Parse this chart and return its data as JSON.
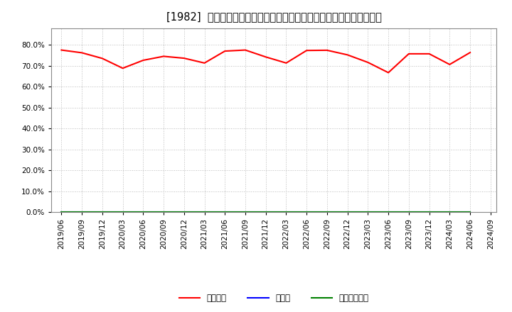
{
  "title": "[1982]  自己資本、のれん、繰延税金資産の総資産に対する比率の推移",
  "ylim": [
    0.0,
    0.88
  ],
  "yticks": [
    0.0,
    0.1,
    0.2,
    0.3,
    0.4,
    0.5,
    0.6,
    0.7,
    0.8
  ],
  "dates": [
    "2019/06",
    "2019/09",
    "2019/12",
    "2020/03",
    "2020/06",
    "2020/09",
    "2020/12",
    "2021/03",
    "2021/06",
    "2021/09",
    "2021/12",
    "2022/03",
    "2022/06",
    "2022/09",
    "2022/12",
    "2023/03",
    "2023/06",
    "2023/09",
    "2023/12",
    "2024/03",
    "2024/06"
  ],
  "x_tick_dates": [
    "2019/06",
    "2019/09",
    "2019/12",
    "2020/03",
    "2020/06",
    "2020/09",
    "2020/12",
    "2021/03",
    "2021/06",
    "2021/09",
    "2021/12",
    "2022/03",
    "2022/06",
    "2022/09",
    "2022/12",
    "2023/03",
    "2023/06",
    "2023/09",
    "2023/12",
    "2024/03",
    "2024/06",
    "2024/09"
  ],
  "jikoshihon": [
    0.775,
    0.762,
    0.735,
    0.688,
    0.726,
    0.745,
    0.736,
    0.713,
    0.77,
    0.775,
    0.742,
    0.713,
    0.773,
    0.774,
    0.752,
    0.716,
    0.667,
    0.757,
    0.757,
    0.706,
    0.763
  ],
  "noren": [
    0,
    0,
    0,
    0,
    0,
    0,
    0,
    0,
    0,
    0,
    0,
    0,
    0,
    0,
    0,
    0,
    0,
    0,
    0,
    0,
    0
  ],
  "kurinobe": [
    0,
    0,
    0,
    0,
    0,
    0,
    0,
    0,
    0,
    0,
    0,
    0,
    0,
    0,
    0,
    0,
    0,
    0,
    0,
    0,
    0
  ],
  "jikoshihon_color": "#ff0000",
  "noren_color": "#0000ff",
  "kurinobe_color": "#008000",
  "background_color": "#ffffff",
  "grid_color": "#aaaaaa",
  "legend_labels": [
    "自己資本",
    "のれん",
    "繰延税金資産"
  ],
  "title_fontsize": 10.5,
  "tick_fontsize": 7.5,
  "legend_fontsize": 8.5
}
